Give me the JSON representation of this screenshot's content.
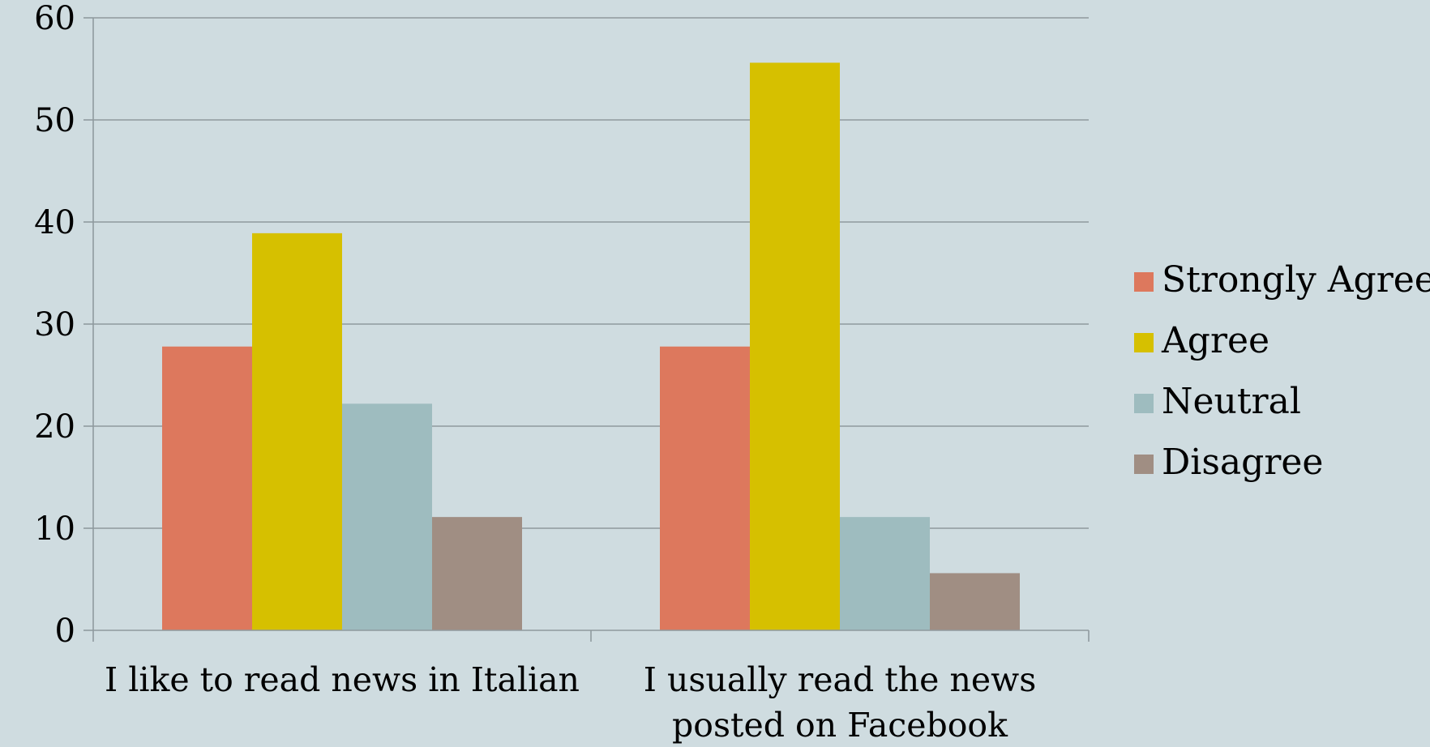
{
  "chart_data": {
    "type": "bar",
    "title": "",
    "xlabel": "",
    "ylabel": "",
    "categories": [
      [
        "I like to read news in Italian"
      ],
      [
        "I usually read the news",
        "posted on Facebook"
      ]
    ],
    "series": [
      {
        "name": "Strongly Agree",
        "color": "#dd785d",
        "values": [
          27.8,
          27.8
        ]
      },
      {
        "name": "Agree",
        "color": "#d6c000",
        "values": [
          38.9,
          55.6
        ]
      },
      {
        "name": "Neutral",
        "color": "#9ebcbf",
        "values": [
          22.2,
          11.1
        ]
      },
      {
        "name": "Disagree",
        "color": "#a08e83",
        "values": [
          11.1,
          5.6
        ]
      }
    ],
    "ylim": [
      0,
      60
    ],
    "yticks": [
      0,
      10,
      20,
      30,
      40,
      50,
      60
    ],
    "grid": true,
    "legend_position": "right"
  },
  "colors": {
    "background": "#cfdce0",
    "grid": "#8f9a9e"
  }
}
